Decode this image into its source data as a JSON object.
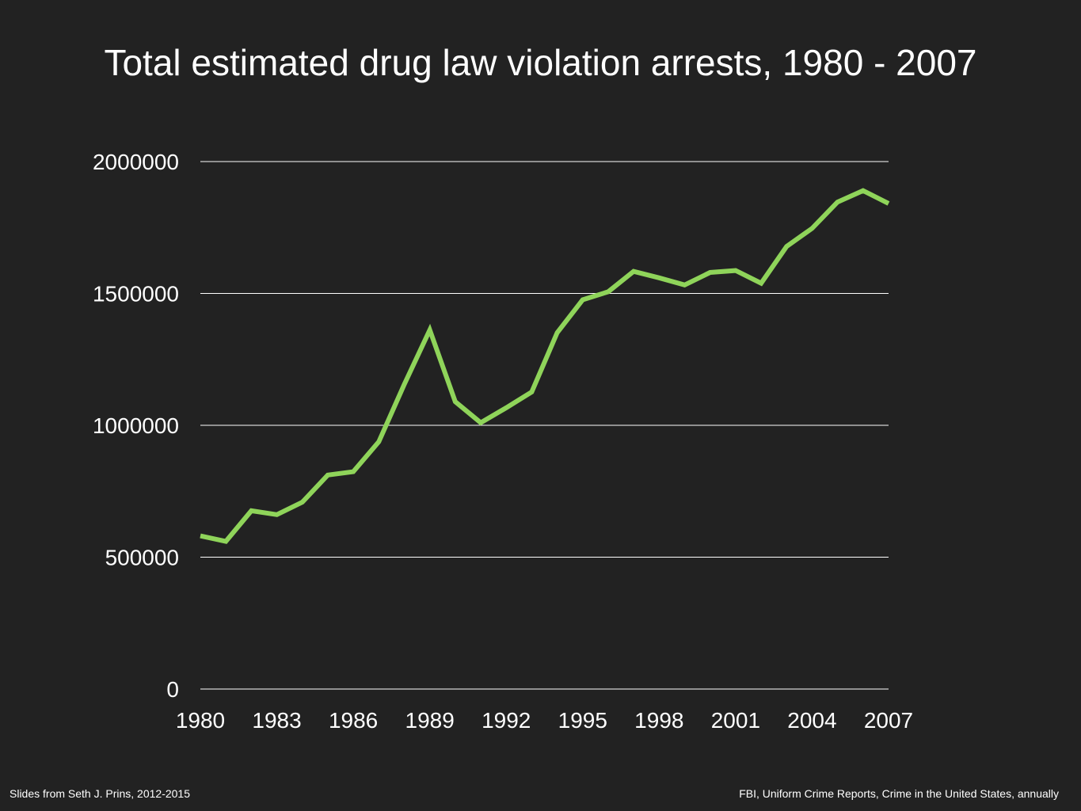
{
  "chart_data": {
    "type": "line",
    "title": "Total estimated drug law violation arrests, 1980 - 2007",
    "xlabel": "",
    "ylabel": "",
    "x": [
      1980,
      1981,
      1982,
      1983,
      1984,
      1985,
      1986,
      1987,
      1988,
      1989,
      1990,
      1991,
      1992,
      1993,
      1994,
      1995,
      1996,
      1997,
      1998,
      1999,
      2000,
      2001,
      2002,
      2003,
      2004,
      2005,
      2006,
      2007
    ],
    "x_tick_labels": [
      "1980",
      "1983",
      "1986",
      "1989",
      "1992",
      "1995",
      "1998",
      "2001",
      "2004",
      "2007"
    ],
    "y_tick_labels": [
      "0",
      "500000",
      "1000000",
      "1500000",
      "2000000"
    ],
    "y_ticks": [
      0,
      500000,
      1000000,
      1500000,
      2000000
    ],
    "ylim": [
      0,
      2000000
    ],
    "xlim": [
      1980,
      2007
    ],
    "grid": "horizontal",
    "series": [
      {
        "values": [
          580900,
          559900,
          676000,
          661400,
          708400,
          811400,
          824100,
          937400,
          1155200,
          1361700,
          1089500,
          1010000,
          1066400,
          1126300,
          1351400,
          1476100,
          1506200,
          1583600,
          1559100,
          1532200,
          1579600,
          1586900,
          1538800,
          1678200,
          1746600,
          1846400,
          1889800,
          1841200
        ],
        "color": "#8FD45A"
      }
    ]
  },
  "footer": {
    "left": "Slides from Seth J. Prins, 2012-2015",
    "right": "FBI, Uniform Crime Reports, Crime in the United States, annually"
  },
  "colors": {
    "background": "#222222",
    "text": "#ffffff",
    "gridline": "#ffffff",
    "line": "#8FD45A"
  }
}
